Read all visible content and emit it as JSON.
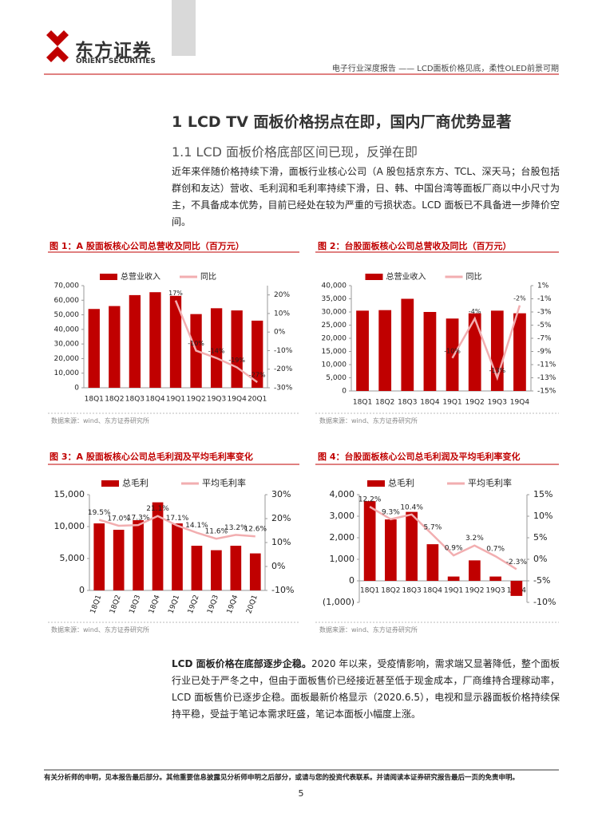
{
  "header": {
    "logo_cn": "东方证券",
    "logo_en": "ORIENT SECURITIES",
    "report_title": "电子行业深度报告 —— LCD面板价格见底，柔性OLED前景可期"
  },
  "section_title": "1 LCD TV 面板价格拐点在即，国内厂商优势显著",
  "subsection_title": "1.1 LCD 面板价格底部区间已现，反弹在即",
  "paragraph_1": "近年来伴随价格持续下滑，面板行业核心公司（A 股包括京东方、TCL、深天马；台股包括群创和友达）营收、毛利润和毛利率持续下滑，日、韩、中国台湾等面板厂商以中小尺寸为主，不具备成本优势，目前已经处在较为严重的亏损状态。LCD 面板已不具备进一步降价空间。",
  "paragraph_2": {
    "lead": "LCD 面板价格在底部逐步企稳。",
    "text": "2020 年以来，受疫情影响，需求端又显著降低，整个面板行业已处于严冬之中，但由于面板售价已经接近甚至低于现金成本，厂商维持合理稼动率，LCD 面板售价已逐步企稳。面板最新价格显示（2020.6.5），电视和显示器面板价格持续保持平稳，受益于笔记本需求旺盛，笔记本面板小幅度上涨。"
  },
  "footer": {
    "disclaimer": "有关分析师的申明，见本报告最后部分。其他重要信息披露见分析师申明之后部分，或请与您的投资代表联系。并请阅读本证券研究报告最后一页的免责申明。",
    "page": "5"
  },
  "chart_data": [
    {
      "type": "bar",
      "title": "图 1：A 股面板核心公司总营收及同比（百万元）",
      "source": "数据来源：wind、东方证券研究所",
      "categories": [
        "18Q1",
        "18Q2",
        "18Q3",
        "18Q4",
        "19Q1",
        "19Q2",
        "19Q3",
        "19Q4",
        "20Q1"
      ],
      "series": [
        {
          "name": "总营业收入",
          "type": "bar",
          "color": "#c00000",
          "values": [
            54000,
            56000,
            63500,
            65500,
            63000,
            50500,
            54500,
            53000,
            46000
          ]
        },
        {
          "name": "同比",
          "type": "line",
          "axis": "y2",
          "color": "#f2aeb0",
          "values": [
            null,
            null,
            null,
            null,
            17,
            -10,
            -14,
            -19,
            -27
          ],
          "value_labels": [
            null,
            null,
            null,
            null,
            "17%",
            "-10%",
            "-14%",
            "-19%",
            "-27%"
          ]
        }
      ],
      "ylim": [
        0,
        70000
      ],
      "yticks": [
        0,
        {
          "value": 10000,
          "label": "10,000"
        },
        {
          "value": 20000,
          "label": "20,000"
        },
        {
          "value": 30000,
          "label": "30,000"
        },
        {
          "value": 40000,
          "label": "40,000"
        },
        {
          "value": 50000,
          "label": "50,000"
        },
        {
          "value": 60000,
          "label": "60,000"
        },
        {
          "value": 70000,
          "label": "70,000"
        }
      ],
      "y2lim": [
        -30,
        25
      ],
      "y2ticks": [
        {
          "value": 20,
          "label": "20%"
        },
        {
          "value": 10,
          "label": "10%"
        },
        {
          "value": 0,
          "label": "0%"
        },
        {
          "value": -10,
          "label": "-10%"
        },
        {
          "value": -20,
          "label": "-20%"
        },
        {
          "value": -30,
          "label": "-30%"
        }
      ]
    },
    {
      "type": "bar",
      "title": "图 2：台股面板核心公司总营收及同比（百万元）",
      "source": "数据来源：wind、东方证券研究所",
      "categories": [
        "18Q1",
        "18Q2",
        "18Q3",
        "18Q4",
        "19Q1",
        "19Q2",
        "19Q3",
        "19Q4"
      ],
      "series": [
        {
          "name": "总营业收入",
          "type": "bar",
          "color": "#c00000",
          "values": [
            30500,
            30700,
            35000,
            30000,
            27500,
            29500,
            30500,
            29500
          ]
        },
        {
          "name": "同比",
          "type": "line",
          "axis": "y2",
          "color": "#f2aeb0",
          "values": [
            null,
            null,
            null,
            null,
            -10,
            -4,
            -13,
            -2
          ],
          "value_labels": [
            null,
            null,
            null,
            null,
            "-10%",
            "-4%",
            "-13%",
            "-2%"
          ]
        }
      ],
      "ylim": [
        0,
        40000
      ],
      "yticks": [
        0,
        {
          "value": 5000,
          "label": "5,000"
        },
        {
          "value": 10000,
          "label": "10,000"
        },
        {
          "value": 15000,
          "label": "15,000"
        },
        {
          "value": 20000,
          "label": "20,000"
        },
        {
          "value": 25000,
          "label": "25,000"
        },
        {
          "value": 30000,
          "label": "30,000"
        },
        {
          "value": 35000,
          "label": "35,000"
        },
        {
          "value": 40000,
          "label": "40,000"
        }
      ],
      "y2lim": [
        -15,
        1
      ],
      "y2ticks": [
        {
          "value": 1,
          "label": "1%"
        },
        {
          "value": -1,
          "label": "-1%"
        },
        {
          "value": -3,
          "label": "-3%"
        },
        {
          "value": -5,
          "label": "-5%"
        },
        {
          "value": -7,
          "label": "-7%"
        },
        {
          "value": -9,
          "label": "-9%"
        },
        {
          "value": -11,
          "label": "-11%"
        },
        {
          "value": -13,
          "label": "-13%"
        },
        {
          "value": -15,
          "label": "-15%"
        }
      ]
    },
    {
      "type": "bar",
      "title": "图 3：A 股面板核心公司总毛利润及平均毛利率变化",
      "source": "数据来源：wind、东方证券研究所",
      "categories": [
        "18Q1",
        "18Q2",
        "18Q3",
        "18Q4",
        "19Q1",
        "19Q2",
        "19Q3",
        "19Q4",
        "20Q1"
      ],
      "series": [
        {
          "name": "总毛利",
          "type": "bar",
          "color": "#c00000",
          "values": [
            10500,
            9500,
            11000,
            13800,
            10500,
            7000,
            6300,
            7000,
            5800
          ]
        },
        {
          "name": "平均毛利率",
          "type": "line",
          "axis": "y2",
          "color": "#f2aeb0",
          "values": [
            19.5,
            17.0,
            17.3,
            21.1,
            17.1,
            14.1,
            11.6,
            13.2,
            12.6
          ],
          "value_labels": [
            "19.5%",
            "17.0%",
            "17.3%",
            "21.1%",
            "17.1%",
            "14.1%",
            "11.6%",
            "13.2%",
            "12.6%"
          ]
        }
      ],
      "ylim": [
        0,
        15000
      ],
      "yticks": [
        0,
        {
          "value": 5000,
          "label": "5,000"
        },
        {
          "value": 10000,
          "label": "10,000"
        },
        {
          "value": 15000,
          "label": "15,000"
        }
      ],
      "y2lim": [
        -10,
        30
      ],
      "y2ticks": [
        {
          "value": 30,
          "label": "30%"
        },
        {
          "value": 20,
          "label": "20%"
        },
        {
          "value": 10,
          "label": "10%"
        },
        {
          "value": 0,
          "label": "0%"
        },
        {
          "value": -10,
          "label": "-10%"
        }
      ]
    },
    {
      "type": "bar",
      "title": "图 4：台股面板核心公司总毛利润及平均毛利率变化",
      "source": "数据来源：wind、东方证券研究所",
      "categories": [
        "18Q1",
        "18Q2",
        "18Q3",
        "18Q4",
        "19Q1",
        "19Q2",
        "19Q3",
        "19Q4"
      ],
      "series": [
        {
          "name": "总毛利",
          "type": "bar",
          "color": "#c00000",
          "values": [
            3700,
            2850,
            3200,
            1700,
            200,
            950,
            200,
            -700
          ]
        },
        {
          "name": "平均毛利率",
          "type": "line",
          "axis": "y2",
          "color": "#f2aeb0",
          "values": [
            12.2,
            9.3,
            10.4,
            5.7,
            0.9,
            3.2,
            0.7,
            -2.3
          ],
          "value_labels": [
            "12.2%",
            "9.3%",
            "10.4%",
            "5.7%",
            "0.9%",
            "3.2%",
            "0.7%",
            "-2.3%"
          ]
        }
      ],
      "ylim": [
        -1000,
        4000
      ],
      "yticks": [
        {
          "value": 4000,
          "label": "4,000"
        },
        {
          "value": 3000,
          "label": "3,000"
        },
        {
          "value": 2000,
          "label": "2,000"
        },
        {
          "value": 1000,
          "label": "1,000"
        },
        0,
        {
          "value": -1000,
          "label": "(1,000)"
        }
      ],
      "y2lim": [
        -10,
        15
      ],
      "y2ticks": [
        {
          "value": 15,
          "label": "15%"
        },
        {
          "value": 10,
          "label": "10%"
        },
        {
          "value": 5,
          "label": "5%"
        },
        {
          "value": 0,
          "label": "0%"
        },
        {
          "value": -5,
          "label": "-5%"
        },
        {
          "value": -10,
          "label": "-10%"
        }
      ]
    }
  ]
}
